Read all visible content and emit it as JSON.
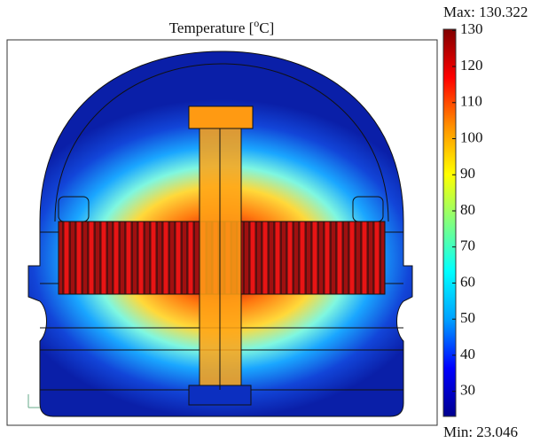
{
  "chart_data": {
    "type": "field",
    "title": [
      "Temperature [",
      "o",
      "C]"
    ],
    "colorbar": {
      "max": {
        "value": 130.322,
        "label": "Max: 130.322"
      },
      "min": {
        "value": 23.046,
        "label": "Min: 23.046"
      },
      "ticks": [
        30,
        40,
        50,
        60,
        70,
        80,
        90,
        100,
        110,
        120,
        130
      ],
      "colors": [
        "#00008f",
        "#0000ff",
        "#00a0ff",
        "#00ffff",
        "#80ff80",
        "#ffff00",
        "#ff9000",
        "#ff0000",
        "#800000"
      ]
    }
  }
}
